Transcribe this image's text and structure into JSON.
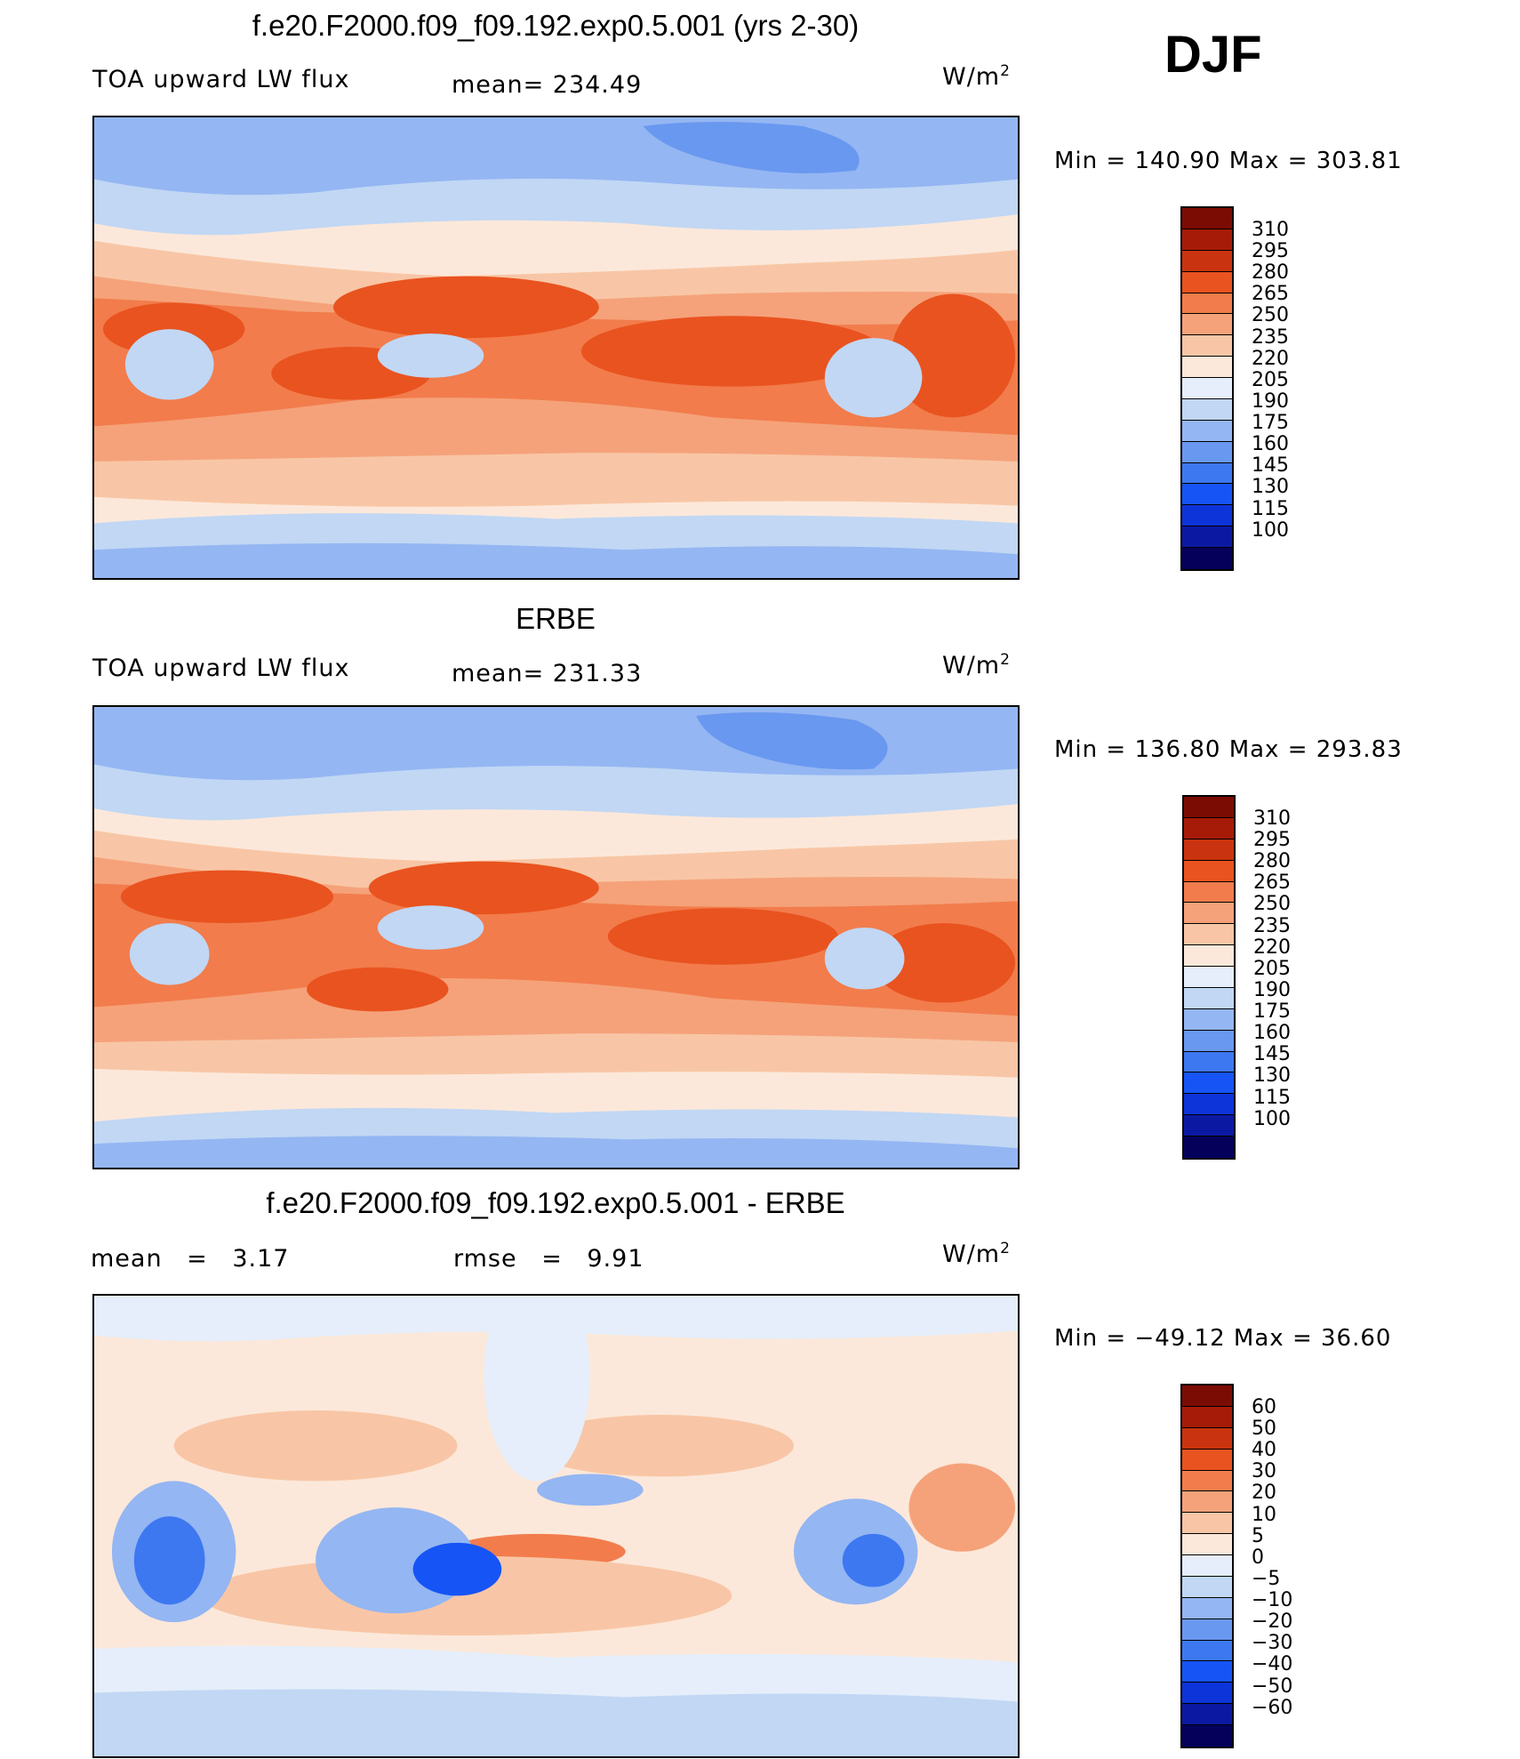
{
  "season": "DJF",
  "colors": {
    "abs": [
      "#05005a",
      "#0b19a2",
      "#0d34d8",
      "#1654f5",
      "#3d78f1",
      "#6998f0",
      "#94b6f2",
      "#c1d7f4",
      "#e5eefa",
      "#fce8da",
      "#f8c6a6",
      "#f5a27a",
      "#f27c4c",
      "#e9531f",
      "#c9330f",
      "#a61b08",
      "#7b0c03"
    ],
    "diff": [
      "#05005a",
      "#0b19a2",
      "#0d34d8",
      "#1654f5",
      "#3d78f1",
      "#6998f0",
      "#94b6f2",
      "#c1d7f4",
      "#e5eefa",
      "#fce8da",
      "#f8c6a6",
      "#f5a27a",
      "#f27c4c",
      "#e9531f",
      "#c9330f",
      "#a61b08",
      "#7b0c03"
    ]
  },
  "panel1": {
    "title": "f.e20.F2000.f09_f09.192.exp0.5.001 (yrs 2-30)",
    "left_label": "TOA upward LW flux",
    "center_label": "mean= 234.49",
    "unit": "W/m",
    "unit_exp": "2",
    "minmax": "Min = 140.90 Max = 303.81"
  },
  "panel2": {
    "title": "ERBE",
    "left_label": "TOA upward LW flux",
    "center_label": "mean= 231.33",
    "unit": "W/m",
    "unit_exp": "2",
    "minmax": "Min = 136.80 Max = 293.83"
  },
  "panel3": {
    "title": "f.e20.F2000.f09_f09.192.exp0.5.001 - ERBE",
    "left_label": "mean = 3.17",
    "center_label": "rmse = 9.91",
    "unit": "W/m",
    "unit_exp": "2",
    "minmax": "Min = −49.12 Max = 36.60"
  },
  "chart_data": [
    {
      "type": "heatmap",
      "title": "f.e20.F2000.f09_f09.192.exp0.5.001 (yrs 2-30)",
      "variable": "TOA upward LW flux",
      "units": "W/m2",
      "mean": 234.49,
      "min": 140.9,
      "max": 303.81,
      "colorbar_levels": [
        310,
        295,
        280,
        265,
        250,
        235,
        220,
        205,
        190,
        175,
        160,
        145,
        130,
        115,
        100
      ]
    },
    {
      "type": "heatmap",
      "title": "ERBE",
      "variable": "TOA upward LW flux",
      "units": "W/m2",
      "mean": 231.33,
      "min": 136.8,
      "max": 293.83,
      "colorbar_levels": [
        310,
        295,
        280,
        265,
        250,
        235,
        220,
        205,
        190,
        175,
        160,
        145,
        130,
        115,
        100
      ]
    },
    {
      "type": "heatmap",
      "title": "f.e20.F2000.f09_f09.192.exp0.5.001 - ERBE",
      "variable": "TOA upward LW flux difference",
      "units": "W/m2",
      "mean": 3.17,
      "rmse": 9.91,
      "min": -49.12,
      "max": 36.6,
      "colorbar_levels": [
        60,
        50,
        40,
        30,
        20,
        10,
        5,
        0,
        -5,
        -10,
        -20,
        -30,
        -40,
        -50,
        -60
      ]
    }
  ],
  "colorbar_labels": {
    "abs": [
      "310",
      "295",
      "280",
      "265",
      "250",
      "235",
      "220",
      "205",
      "190",
      "175",
      "160",
      "145",
      "130",
      "115",
      "100"
    ],
    "diff": [
      "60",
      "50",
      "40",
      "30",
      "20",
      "10",
      "5",
      "0",
      "−5",
      "−10",
      "−20",
      "−30",
      "−40",
      "−50",
      "−60"
    ]
  }
}
